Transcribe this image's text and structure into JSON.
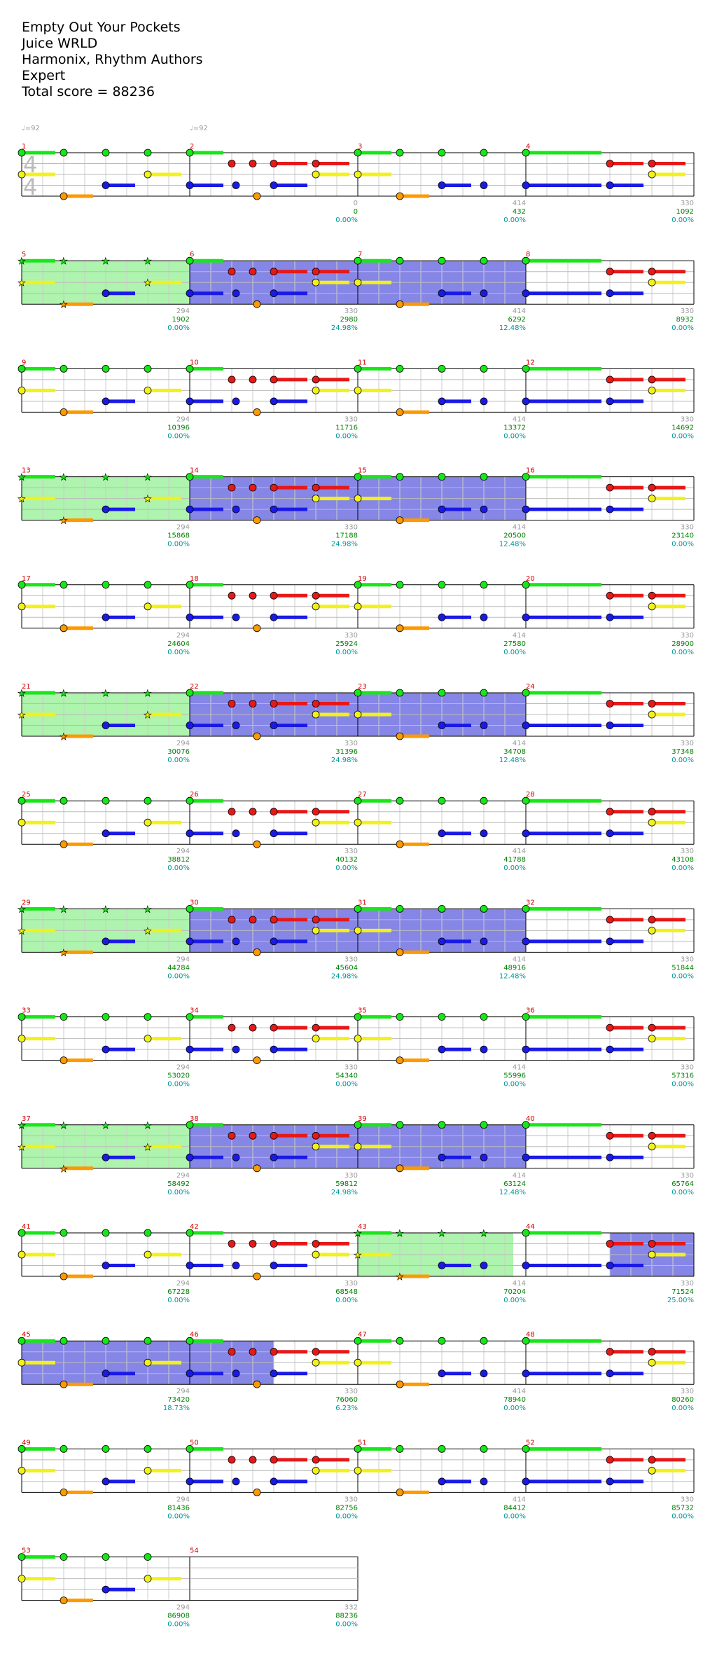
{
  "header": {
    "title": "Empty Out Your Pockets",
    "artist": "Juice WRLD",
    "charter": "Harmonix, Rhythm Authors",
    "difficulty": "Expert",
    "total_score": "Total score = 88236"
  },
  "time_signature": [
    "4",
    "4"
  ],
  "tempo_markers": [
    {
      "measure": 1,
      "label": "♩=92"
    },
    {
      "measure": 2,
      "label": "♩=92"
    }
  ],
  "colors": {
    "green": "#19e619",
    "red": "#e61919",
    "yellow": "#f2f21a",
    "blue": "#1a1ae6",
    "orange": "#ff9900",
    "star_power": "#aef3ae",
    "overdrive": "#8686e6",
    "measure_number": "#cc0000",
    "score": "#008000",
    "percent": "#009999",
    "tick": "#999999"
  },
  "measures": [
    {
      "n": 1,
      "tick": "",
      "score": "",
      "pct": "",
      "sp": "none"
    },
    {
      "n": 2,
      "tick": "0",
      "score": "0",
      "pct": "0.00%",
      "sp": "none"
    },
    {
      "n": 3,
      "tick": "414",
      "score": "432",
      "pct": "0.00%",
      "sp": "none"
    },
    {
      "n": 4,
      "tick": "330",
      "score": "1092",
      "pct": "0.00%",
      "sp": "none"
    },
    {
      "n": 5,
      "tick": "294",
      "score": "1902",
      "pct": "0.00%",
      "sp": "sp"
    },
    {
      "n": 6,
      "tick": "330",
      "score": "2980",
      "pct": "24.98%",
      "sp": "od"
    },
    {
      "n": 7,
      "tick": "414",
      "score": "6292",
      "pct": "12.48%",
      "sp": "od"
    },
    {
      "n": 8,
      "tick": "330",
      "score": "8932",
      "pct": "0.00%",
      "sp": "none"
    },
    {
      "n": 9,
      "tick": "294",
      "score": "10396",
      "pct": "0.00%",
      "sp": "none"
    },
    {
      "n": 10,
      "tick": "330",
      "score": "11716",
      "pct": "0.00%",
      "sp": "none"
    },
    {
      "n": 11,
      "tick": "414",
      "score": "13372",
      "pct": "0.00%",
      "sp": "none"
    },
    {
      "n": 12,
      "tick": "330",
      "score": "14692",
      "pct": "0.00%",
      "sp": "none"
    },
    {
      "n": 13,
      "tick": "294",
      "score": "15868",
      "pct": "0.00%",
      "sp": "sp"
    },
    {
      "n": 14,
      "tick": "330",
      "score": "17188",
      "pct": "24.98%",
      "sp": "od"
    },
    {
      "n": 15,
      "tick": "414",
      "score": "20500",
      "pct": "12.48%",
      "sp": "od"
    },
    {
      "n": 16,
      "tick": "330",
      "score": "23140",
      "pct": "0.00%",
      "sp": "none"
    },
    {
      "n": 17,
      "tick": "294",
      "score": "24604",
      "pct": "0.00%",
      "sp": "none"
    },
    {
      "n": 18,
      "tick": "330",
      "score": "25924",
      "pct": "0.00%",
      "sp": "none"
    },
    {
      "n": 19,
      "tick": "414",
      "score": "27580",
      "pct": "0.00%",
      "sp": "none"
    },
    {
      "n": 20,
      "tick": "330",
      "score": "28900",
      "pct": "0.00%",
      "sp": "none"
    },
    {
      "n": 21,
      "tick": "294",
      "score": "30076",
      "pct": "0.00%",
      "sp": "sp"
    },
    {
      "n": 22,
      "tick": "330",
      "score": "31396",
      "pct": "24.98%",
      "sp": "od"
    },
    {
      "n": 23,
      "tick": "414",
      "score": "34708",
      "pct": "12.48%",
      "sp": "od"
    },
    {
      "n": 24,
      "tick": "330",
      "score": "37348",
      "pct": "0.00%",
      "sp": "none"
    },
    {
      "n": 25,
      "tick": "294",
      "score": "38812",
      "pct": "0.00%",
      "sp": "none"
    },
    {
      "n": 26,
      "tick": "330",
      "score": "40132",
      "pct": "0.00%",
      "sp": "none"
    },
    {
      "n": 27,
      "tick": "414",
      "score": "41788",
      "pct": "0.00%",
      "sp": "none"
    },
    {
      "n": 28,
      "tick": "330",
      "score": "43108",
      "pct": "0.00%",
      "sp": "none"
    },
    {
      "n": 29,
      "tick": "294",
      "score": "44284",
      "pct": "0.00%",
      "sp": "sp"
    },
    {
      "n": 30,
      "tick": "330",
      "score": "45604",
      "pct": "24.98%",
      "sp": "od"
    },
    {
      "n": 31,
      "tick": "414",
      "score": "48916",
      "pct": "12.48%",
      "sp": "od"
    },
    {
      "n": 32,
      "tick": "330",
      "score": "51844",
      "pct": "0.00%",
      "sp": "none"
    },
    {
      "n": 33,
      "tick": "294",
      "score": "53020",
      "pct": "0.00%",
      "sp": "none"
    },
    {
      "n": 34,
      "tick": "330",
      "score": "54340",
      "pct": "0.00%",
      "sp": "none"
    },
    {
      "n": 35,
      "tick": "414",
      "score": "55996",
      "pct": "0.00%",
      "sp": "none"
    },
    {
      "n": 36,
      "tick": "330",
      "score": "57316",
      "pct": "0.00%",
      "sp": "none"
    },
    {
      "n": 37,
      "tick": "294",
      "score": "58492",
      "pct": "0.00%",
      "sp": "sp"
    },
    {
      "n": 38,
      "tick": "330",
      "score": "59812",
      "pct": "24.98%",
      "sp": "od"
    },
    {
      "n": 39,
      "tick": "414",
      "score": "63124",
      "pct": "12.48%",
      "sp": "od"
    },
    {
      "n": 40,
      "tick": "330",
      "score": "65764",
      "pct": "0.00%",
      "sp": "none"
    },
    {
      "n": 41,
      "tick": "294",
      "score": "67228",
      "pct": "0.00%",
      "sp": "none"
    },
    {
      "n": 42,
      "tick": "330",
      "score": "68548",
      "pct": "0.00%",
      "sp": "none"
    },
    {
      "n": 43,
      "tick": "414",
      "score": "70204",
      "pct": "0.00%",
      "sp": "sp"
    },
    {
      "n": 44,
      "tick": "330",
      "score": "71524",
      "pct": "25.00%",
      "sp": "od_partial"
    },
    {
      "n": 45,
      "tick": "294",
      "score": "73420",
      "pct": "18.73%",
      "sp": "od"
    },
    {
      "n": 46,
      "tick": "330",
      "score": "76060",
      "pct": "6.23%",
      "sp": "od_half"
    },
    {
      "n": 47,
      "tick": "414",
      "score": "78940",
      "pct": "0.00%",
      "sp": "none"
    },
    {
      "n": 48,
      "tick": "330",
      "score": "80260",
      "pct": "0.00%",
      "sp": "none"
    },
    {
      "n": 49,
      "tick": "294",
      "score": "81436",
      "pct": "0.00%",
      "sp": "none"
    },
    {
      "n": 50,
      "tick": "330",
      "score": "82756",
      "pct": "0.00%",
      "sp": "none"
    },
    {
      "n": 51,
      "tick": "414",
      "score": "84412",
      "pct": "0.00%",
      "sp": "none"
    },
    {
      "n": 52,
      "tick": "330",
      "score": "85732",
      "pct": "0.00%",
      "sp": "none"
    },
    {
      "n": 53,
      "tick": "294",
      "score": "86908",
      "pct": "0.00%",
      "sp": "none"
    }
  ],
  "final": {
    "tick": "332",
    "score": "88236",
    "pct": "0.00%"
  }
}
